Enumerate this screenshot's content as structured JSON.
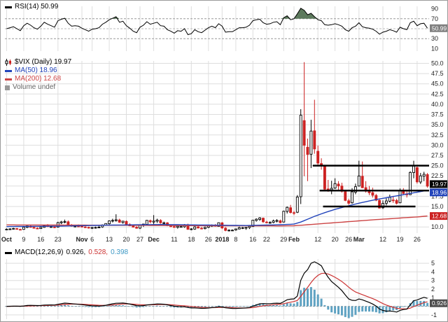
{
  "colors": {
    "up": "#000000",
    "down": "#cc2222",
    "ma50": "#2244bb",
    "ma200": "#cc4444",
    "signal": "#cc3333",
    "histogram": "#5fa2c2",
    "histogram_text": "#3b97c4",
    "grid": "#dedede",
    "axis_text": "#222222",
    "rsi_fill": "#5d7a5d",
    "box_gray": "#808080",
    "box_black": "#000000",
    "box_blue": "#2244bb",
    "box_red": "#cc2222",
    "box_macd": "#4d4d4d",
    "volume_icon": "#999999",
    "volume_text": "#666666"
  },
  "legends": {
    "rsi": "RSI(14) 50.99",
    "symbol": "$VIX (Daily) 19.97",
    "ma50": "MA(50) 18.96",
    "ma200": "MA(200) 12.68",
    "volume": "Volume undef",
    "macd": "MACD(12,26,9)",
    "macd_v1": "0.926,",
    "macd_v2": "0.528,",
    "macd_v3": "0.398"
  },
  "rsi_panel": {
    "current": "50.99",
    "ticks": [
      "90",
      "70",
      "30",
      "10"
    ],
    "dashed_levels": [
      70,
      50,
      30
    ]
  },
  "main_panel": {
    "current": "19.97",
    "ma50_value": "18.96",
    "ma200_value": "12.68",
    "ticks": [
      "50.0",
      "47.5",
      "45.0",
      "42.5",
      "40.0",
      "37.5",
      "35.0",
      "32.5",
      "30.0",
      "27.5",
      "25.0",
      "22.5",
      "17.5",
      "15.0",
      "10.0"
    ]
  },
  "macd_panel": {
    "current": "0.926",
    "ticks": [
      "5",
      "4",
      "3",
      "2",
      "1",
      "-1"
    ]
  },
  "x_axis": {
    "ticks": [
      {
        "i": 0,
        "label": "Oct",
        "bold": true
      },
      {
        "i": 5,
        "label": "9"
      },
      {
        "i": 10,
        "label": "16"
      },
      {
        "i": 15,
        "label": "23"
      },
      {
        "i": 22,
        "label": "Nov",
        "bold": true
      },
      {
        "i": 25,
        "label": "6"
      },
      {
        "i": 30,
        "label": "13"
      },
      {
        "i": 35,
        "label": "20"
      },
      {
        "i": 39,
        "label": "27"
      },
      {
        "i": 43,
        "label": "Dec",
        "bold": true
      },
      {
        "i": 49,
        "label": "11"
      },
      {
        "i": 54,
        "label": "18"
      },
      {
        "i": 59,
        "label": "26"
      },
      {
        "i": 63,
        "label": "2018",
        "bold": true
      },
      {
        "i": 67,
        "label": "8"
      },
      {
        "i": 72,
        "label": "16"
      },
      {
        "i": 76,
        "label": "22"
      },
      {
        "i": 81,
        "label": "29"
      },
      {
        "i": 84,
        "label": "Feb",
        "bold": true
      },
      {
        "i": 91,
        "label": "12"
      },
      {
        "i": 96,
        "label": "20"
      },
      {
        "i": 100,
        "label": "26"
      },
      {
        "i": 103,
        "label": "Mar",
        "bold": true
      },
      {
        "i": 110,
        "label": "12"
      },
      {
        "i": 115,
        "label": "19"
      },
      {
        "i": 120,
        "label": "26"
      }
    ]
  },
  "chart_data": [
    {
      "type": "line",
      "title": "RSI(14)",
      "panel": "rsi",
      "ylim": [
        5,
        95
      ],
      "overbought": 70,
      "oversold": 30,
      "last": 50.99,
      "values": [
        50,
        52,
        54,
        50,
        46,
        56,
        61,
        57,
        52,
        49,
        55,
        63,
        59,
        56,
        53,
        66,
        69,
        71,
        61,
        55,
        56,
        55,
        51,
        48,
        45,
        49,
        50,
        52,
        59,
        63,
        68,
        71,
        74,
        63,
        65,
        56,
        51,
        45,
        42,
        53,
        57,
        64,
        59,
        61,
        63,
        56,
        55,
        48,
        45,
        41,
        46,
        45,
        50,
        38,
        40,
        48,
        44,
        42,
        47,
        52,
        55,
        52,
        60,
        55,
        43,
        44,
        44,
        48,
        52,
        52,
        53,
        57,
        66,
        68,
        69,
        62,
        59,
        60,
        63,
        64,
        58,
        72,
        76,
        68,
        70,
        80,
        91,
        87,
        78,
        81,
        74,
        68,
        66,
        58,
        57,
        58,
        60,
        58,
        55,
        48,
        45,
        52,
        55,
        62,
        54,
        52,
        51,
        49,
        45,
        39,
        43,
        45,
        48,
        46,
        43,
        53,
        50,
        48,
        62,
        65,
        56,
        60,
        61,
        50.99
      ]
    },
    {
      "type": "candlestick",
      "title": "$VIX (Daily)",
      "panel": "price",
      "ylim": [
        8.5,
        50.6
      ],
      "last_close": 19.97,
      "ohlc": [
        [
          9.45,
          9.65,
          9.3,
          9.45
        ],
        [
          9.5,
          9.7,
          9.35,
          9.51
        ],
        [
          9.55,
          9.8,
          9.4,
          9.63
        ],
        [
          9.6,
          9.75,
          9.35,
          9.45
        ],
        [
          9.4,
          9.6,
          9.19,
          9.35
        ],
        [
          9.4,
          10.1,
          9.3,
          9.95
        ],
        [
          9.9,
          10.3,
          9.7,
          10.25
        ],
        [
          10.2,
          10.4,
          9.85,
          9.91
        ],
        [
          9.9,
          10.1,
          9.6,
          9.7
        ],
        [
          9.7,
          9.9,
          9.5,
          9.61
        ],
        [
          9.6,
          10.0,
          9.55,
          9.91
        ],
        [
          9.9,
          10.5,
          9.8,
          10.31
        ],
        [
          10.3,
          10.7,
          10.0,
          10.07
        ],
        [
          10.05,
          10.3,
          9.85,
          10.05
        ],
        [
          10.0,
          10.25,
          9.7,
          9.97
        ],
        [
          9.95,
          11.28,
          9.9,
          11.07
        ],
        [
          11.0,
          11.5,
          10.7,
          11.23
        ],
        [
          11.2,
          11.8,
          10.9,
          11.3
        ],
        [
          11.25,
          11.6,
          10.3,
          10.5
        ],
        [
          10.45,
          10.7,
          10.1,
          10.18
        ],
        [
          10.15,
          10.45,
          9.9,
          10.2
        ],
        [
          10.2,
          10.6,
          10.0,
          10.18
        ],
        [
          10.2,
          10.4,
          9.9,
          10.0
        ],
        [
          10.0,
          10.2,
          9.7,
          9.93
        ],
        [
          9.9,
          10.1,
          9.6,
          9.73
        ],
        [
          9.75,
          10.0,
          9.5,
          9.86
        ],
        [
          9.85,
          10.1,
          9.6,
          9.89
        ],
        [
          9.9,
          10.3,
          9.7,
          9.96
        ],
        [
          10.0,
          10.6,
          9.8,
          10.5
        ],
        [
          10.45,
          10.9,
          10.3,
          10.85
        ],
        [
          10.8,
          11.6,
          10.6,
          11.5
        ],
        [
          11.45,
          12.0,
          11.1,
          11.59
        ],
        [
          11.55,
          13.1,
          11.3,
          11.76
        ],
        [
          11.7,
          12.0,
          11.0,
          11.16
        ],
        [
          11.1,
          11.5,
          10.8,
          11.43
        ],
        [
          11.35,
          11.6,
          10.5,
          10.65
        ],
        [
          10.6,
          10.9,
          10.2,
          10.28
        ],
        [
          10.25,
          10.5,
          9.9,
          9.96
        ],
        [
          9.95,
          10.2,
          9.6,
          9.67
        ],
        [
          9.7,
          10.5,
          9.5,
          10.41
        ],
        [
          10.35,
          10.8,
          10.0,
          10.7
        ],
        [
          10.65,
          11.7,
          10.4,
          11.62
        ],
        [
          11.55,
          11.8,
          10.9,
          11.28
        ],
        [
          11.2,
          12.9,
          10.6,
          11.43
        ],
        [
          11.4,
          12.0,
          11.0,
          11.68
        ],
        [
          11.6,
          11.9,
          10.8,
          11.02
        ],
        [
          11.0,
          11.3,
          10.6,
          11.02
        ],
        [
          11.0,
          11.2,
          10.2,
          10.31
        ],
        [
          10.3,
          10.6,
          10.0,
          10.08
        ],
        [
          10.1,
          10.4,
          9.8,
          9.92
        ],
        [
          9.9,
          10.2,
          9.6,
          10.18
        ],
        [
          10.1,
          10.5,
          9.9,
          10.1
        ],
        [
          10.05,
          10.7,
          9.8,
          10.49
        ],
        [
          10.4,
          10.8,
          9.3,
          9.42
        ],
        [
          9.4,
          9.7,
          9.2,
          9.53
        ],
        [
          9.5,
          10.2,
          9.3,
          10.03
        ],
        [
          10.0,
          10.3,
          9.7,
          9.72
        ],
        [
          9.7,
          10.0,
          9.4,
          9.62
        ],
        [
          9.6,
          10.1,
          9.4,
          9.9
        ],
        [
          9.9,
          10.5,
          9.7,
          10.25
        ],
        [
          10.2,
          10.6,
          10.0,
          10.47
        ],
        [
          10.4,
          10.7,
          10.1,
          10.18
        ],
        [
          10.15,
          11.1,
          10.1,
          11.04
        ],
        [
          11.0,
          11.2,
          9.5,
          9.77
        ],
        [
          9.7,
          10.0,
          8.94,
          9.15
        ],
        [
          9.2,
          9.4,
          8.9,
          9.22
        ],
        [
          9.2,
          9.4,
          9.0,
          9.22
        ],
        [
          9.25,
          9.6,
          9.1,
          9.52
        ],
        [
          9.5,
          10.1,
          9.4,
          9.82
        ],
        [
          9.8,
          10.0,
          9.5,
          9.82
        ],
        [
          9.8,
          10.0,
          9.3,
          9.88
        ],
        [
          9.85,
          10.2,
          9.5,
          10.16
        ],
        [
          10.1,
          11.7,
          10.0,
          11.66
        ],
        [
          11.6,
          12.1,
          11.3,
          11.91
        ],
        [
          11.85,
          12.4,
          11.5,
          12.22
        ],
        [
          12.15,
          12.3,
          11.0,
          11.27
        ],
        [
          11.2,
          11.5,
          10.9,
          11.03
        ],
        [
          11.05,
          11.4,
          10.8,
          11.1
        ],
        [
          11.1,
          11.8,
          10.9,
          11.47
        ],
        [
          11.4,
          11.9,
          11.1,
          11.58
        ],
        [
          11.5,
          11.8,
          10.9,
          11.08
        ],
        [
          11.2,
          14.0,
          11.1,
          13.84
        ],
        [
          13.8,
          15.0,
          13.3,
          14.79
        ],
        [
          14.7,
          15.4,
          13.3,
          13.54
        ],
        [
          13.5,
          13.9,
          12.9,
          13.47
        ],
        [
          13.6,
          17.8,
          13.4,
          17.31
        ],
        [
          17.4,
          38.8,
          15.6,
          37.32
        ],
        [
          36.0,
          50.3,
          22.4,
          29.98
        ],
        [
          29.5,
          31.6,
          21.2,
          27.73
        ],
        [
          27.8,
          36.2,
          24.4,
          33.46
        ],
        [
          33.5,
          41.1,
          27.9,
          29.06
        ],
        [
          28.5,
          29.9,
          24.9,
          25.61
        ],
        [
          25.5,
          26.8,
          24.0,
          24.97
        ],
        [
          24.8,
          25.1,
          19.0,
          19.26
        ],
        [
          19.3,
          21.5,
          18.6,
          19.13
        ],
        [
          19.1,
          21.3,
          18.0,
          19.46
        ],
        [
          19.5,
          21.9,
          19.3,
          20.6
        ],
        [
          20.5,
          21.2,
          18.9,
          20.02
        ],
        [
          20.0,
          20.8,
          18.4,
          18.72
        ],
        [
          18.6,
          19.0,
          16.3,
          16.49
        ],
        [
          16.4,
          16.9,
          15.4,
          15.8
        ],
        [
          15.9,
          19.5,
          15.7,
          18.59
        ],
        [
          18.5,
          20.6,
          18.0,
          19.85
        ],
        [
          20.0,
          26.2,
          19.9,
          22.47
        ],
        [
          22.4,
          26.0,
          19.5,
          19.59
        ],
        [
          19.6,
          21.2,
          18.4,
          18.73
        ],
        [
          18.7,
          20.0,
          17.8,
          18.36
        ],
        [
          18.4,
          19.6,
          17.2,
          17.76
        ],
        [
          17.7,
          18.1,
          16.3,
          16.54
        ],
        [
          16.5,
          16.8,
          14.5,
          14.64
        ],
        [
          14.7,
          16.5,
          14.4,
          15.78
        ],
        [
          15.8,
          17.0,
          15.3,
          16.35
        ],
        [
          16.3,
          17.9,
          16.0,
          17.23
        ],
        [
          16.6,
          17.6,
          15.9,
          16.59
        ],
        [
          16.5,
          16.9,
          15.5,
          15.8
        ],
        [
          15.9,
          19.4,
          15.8,
          19.02
        ],
        [
          19.0,
          19.5,
          17.8,
          18.2
        ],
        [
          18.1,
          18.8,
          17.2,
          17.86
        ],
        [
          17.9,
          23.6,
          17.8,
          23.34
        ],
        [
          23.3,
          26.2,
          21.9,
          24.87
        ],
        [
          24.5,
          25.0,
          20.6,
          21.03
        ],
        [
          21.0,
          23.2,
          20.5,
          22.5
        ],
        [
          22.4,
          23.5,
          21.2,
          22.87
        ],
        [
          22.8,
          23.2,
          19.6,
          19.97
        ]
      ],
      "ma50": {
        "period": 50,
        "last": 18.96,
        "anchors": [
          [
            0,
            10.1
          ],
          [
            15,
            10.2
          ],
          [
            30,
            10.45
          ],
          [
            45,
            10.6
          ],
          [
            60,
            10.45
          ],
          [
            70,
            10.35
          ],
          [
            80,
            10.55
          ],
          [
            84,
            10.7
          ],
          [
            86,
            11.2
          ],
          [
            88,
            11.9
          ],
          [
            90,
            12.6
          ],
          [
            93,
            13.5
          ],
          [
            96,
            14.3
          ],
          [
            100,
            15.2
          ],
          [
            104,
            16.0
          ],
          [
            108,
            16.7
          ],
          [
            112,
            17.3
          ],
          [
            116,
            17.9
          ],
          [
            120,
            18.5
          ],
          [
            123,
            18.96
          ]
        ]
      },
      "ma200": {
        "period": 200,
        "last": 12.68,
        "anchors": [
          [
            0,
            10.5
          ],
          [
            20,
            10.45
          ],
          [
            40,
            10.4
          ],
          [
            60,
            10.3
          ],
          [
            80,
            10.25
          ],
          [
            84,
            10.3
          ],
          [
            88,
            10.55
          ],
          [
            92,
            10.8
          ],
          [
            96,
            11.05
          ],
          [
            100,
            11.3
          ],
          [
            104,
            11.55
          ],
          [
            108,
            11.8
          ],
          [
            112,
            12.0
          ],
          [
            116,
            12.25
          ],
          [
            120,
            12.45
          ],
          [
            123,
            12.68
          ]
        ]
      },
      "trendlines": [
        {
          "y": 25.0,
          "from": 89.5,
          "to": 123.5
        },
        {
          "y": 18.9,
          "from": 91.5,
          "to": 123.5
        },
        {
          "y": 15.0,
          "from": 92.5,
          "to": 119.5
        }
      ]
    },
    {
      "type": "macd",
      "title": "MACD(12,26,9)",
      "panel": "macd",
      "ylim": [
        -1.5,
        5.5
      ],
      "fast": 12,
      "slow": 26,
      "signal_period": 9,
      "last": {
        "macd": 0.926,
        "signal": 0.528,
        "hist": 0.398
      }
    }
  ]
}
